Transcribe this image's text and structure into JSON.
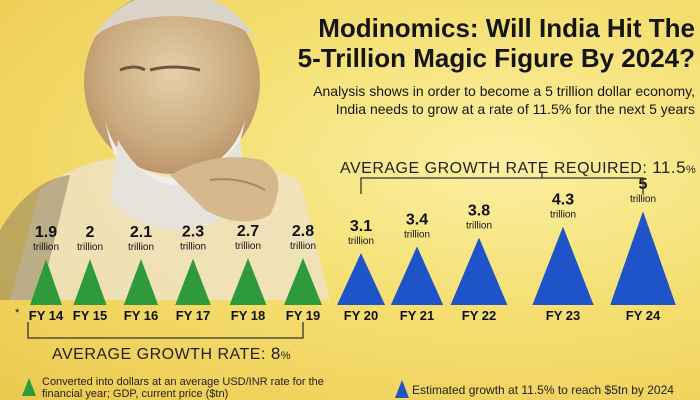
{
  "chart_data": {
    "type": "bar",
    "title_line1": "Modinomics: Will India Hit The",
    "title_line2": "5-Trillion Magic Figure By 2024?",
    "subtitle_line1": "Analysis shows in order to become a 5 trillion dollar economy,",
    "subtitle_line2": "India needs to grow at a rate of 11.5% for the next 5 years",
    "unit_label": "trillion",
    "categories": [
      "FY 14",
      "FY 15",
      "FY 16",
      "FY 17",
      "FY 18",
      "FY 19",
      "FY 20",
      "FY 21",
      "FY 22",
      "FY 23",
      "FY 24"
    ],
    "values": [
      1.9,
      2,
      2.1,
      2.3,
      2.7,
      2.8,
      3.1,
      3.4,
      3.8,
      4.3,
      5
    ],
    "value_labels": [
      "1.9",
      "2",
      "2.1",
      "2.3",
      "2.7",
      "2.8",
      "3.1",
      "3.4",
      "3.8",
      "4.3",
      "5"
    ],
    "series_type": [
      "actual",
      "actual",
      "actual",
      "actual",
      "actual",
      "actual",
      "estimated",
      "estimated",
      "estimated",
      "estimated",
      "estimated"
    ],
    "first_category_marker": "*",
    "colors": {
      "actual": "#2f9a3c",
      "estimated": "#1f54c9"
    },
    "required_growth": {
      "label": "AVERAGE GROWTH RATE REQUIRED:",
      "value": "11.5",
      "unit": "%"
    },
    "average_growth": {
      "label": "AVERAGE GROWTH RATE:",
      "value": "8",
      "unit": "%"
    },
    "legend": [
      {
        "text": "Converted into dollars at an average USD/INR rate for the financial year; GDP, current price ($tn)",
        "color": "#2f9a3c"
      },
      {
        "text": "Estimated growth at 11.5% to reach $5tn by 2024",
        "color": "#1f54c9"
      }
    ]
  }
}
